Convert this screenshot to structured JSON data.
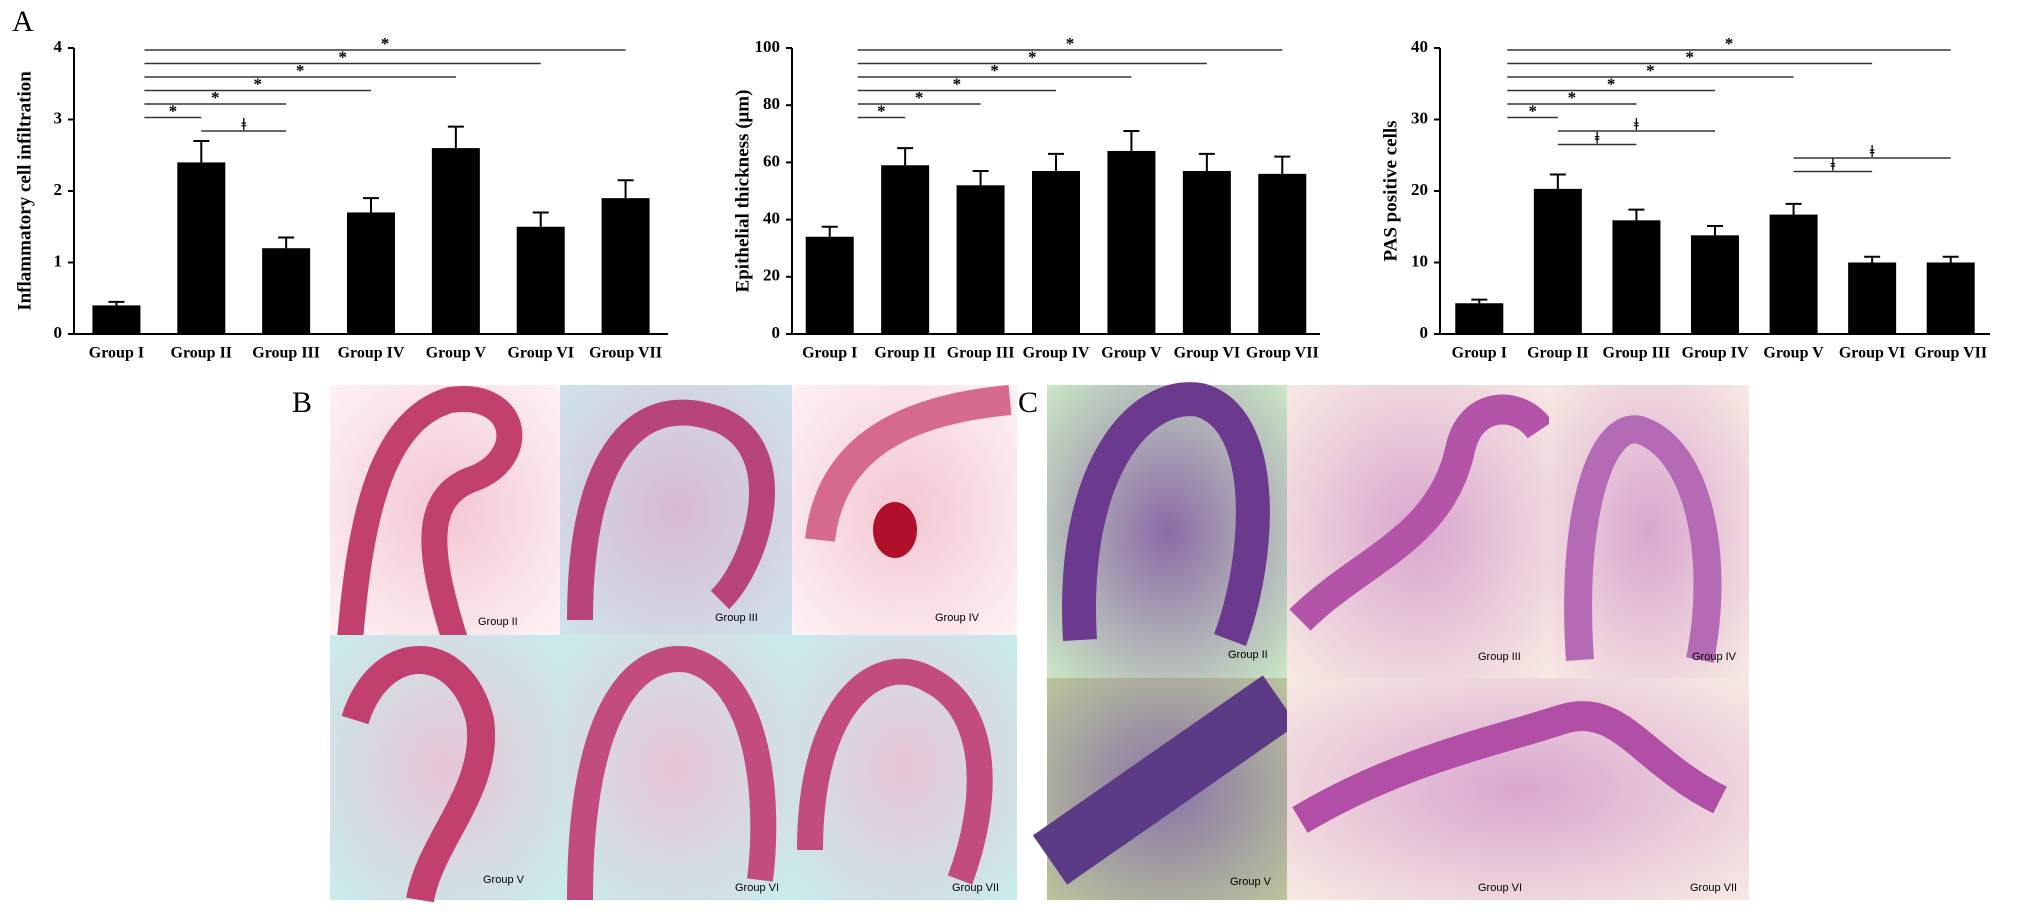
{
  "chart_data": [
    {
      "type": "bar",
      "ylabel": "Inflammatory cell infiltration",
      "color": "#000000",
      "categories": [
        "Group I",
        "Group II",
        "Group III",
        "Group IV",
        "Group V",
        "Group VI",
        "Group VII"
      ],
      "values": [
        0.4,
        2.4,
        1.2,
        1.7,
        2.6,
        1.5,
        1.9
      ],
      "errors": [
        0.05,
        0.3,
        0.15,
        0.2,
        0.3,
        0.2,
        0.25
      ],
      "ylim": [
        0,
        4
      ],
      "yticks": [
        0,
        1,
        2,
        3,
        4
      ],
      "annotations": [
        {
          "text": "*",
          "from": "Group I",
          "to": "Group VII"
        },
        {
          "text": "*",
          "from": "Group I",
          "to": "Group VI"
        },
        {
          "text": "*",
          "from": "Group I",
          "to": "Group V"
        },
        {
          "text": "*",
          "from": "Group I",
          "to": "Group IV"
        },
        {
          "text": "*",
          "from": "Group I",
          "to": "Group III"
        },
        {
          "text": "*",
          "from": "Group I",
          "to": "Group II"
        },
        {
          "text": "ǂ",
          "from": "Group II",
          "to": "Group III"
        }
      ]
    },
    {
      "type": "bar",
      "ylabel": "Epithelial thickness (μm)",
      "color": "#000000",
      "categories": [
        "Group I",
        "Group II",
        "Group III",
        "Group IV",
        "Group V",
        "Group VI",
        "Group VII"
      ],
      "values": [
        34,
        59,
        52,
        57,
        64,
        57,
        56
      ],
      "errors": [
        3.5,
        6,
        5,
        6,
        7,
        6,
        6
      ],
      "ylim": [
        0,
        100
      ],
      "yticks": [
        0,
        20,
        40,
        60,
        80,
        100
      ],
      "annotations": [
        {
          "text": "*",
          "from": "Group I",
          "to": "Group VII"
        },
        {
          "text": "*",
          "from": "Group I",
          "to": "Group VI"
        },
        {
          "text": "*",
          "from": "Group I",
          "to": "Group V"
        },
        {
          "text": "*",
          "from": "Group I",
          "to": "Group IV"
        },
        {
          "text": "*",
          "from": "Group I",
          "to": "Group III"
        },
        {
          "text": "*",
          "from": "Group I",
          "to": "Group II"
        }
      ]
    },
    {
      "type": "bar",
      "ylabel": "PAS positive cells",
      "color": "#000000",
      "categories": [
        "Group I",
        "Group II",
        "Group III",
        "Group IV",
        "Group V",
        "Group VI",
        "Group VII"
      ],
      "values": [
        4.3,
        20.3,
        15.9,
        13.8,
        16.7,
        10,
        10
      ],
      "errors": [
        0.5,
        2,
        1.5,
        1.3,
        1.5,
        0.8,
        0.8
      ],
      "ylim": [
        0,
        40
      ],
      "yticks": [
        0,
        10,
        20,
        30,
        40
      ],
      "annotations": [
        {
          "text": "*",
          "from": "Group I",
          "to": "Group VII"
        },
        {
          "text": "*",
          "from": "Group I",
          "to": "Group VI"
        },
        {
          "text": "*",
          "from": "Group I",
          "to": "Group V"
        },
        {
          "text": "*",
          "from": "Group I",
          "to": "Group IV"
        },
        {
          "text": "*",
          "from": "Group I",
          "to": "Group III"
        },
        {
          "text": "*",
          "from": "Group I",
          "to": "Group II"
        },
        {
          "text": "ǂ",
          "from": "Group II",
          "to": "Group IV"
        },
        {
          "text": "ǂ",
          "from": "Group II",
          "to": "Group III"
        },
        {
          "text": "ǂ",
          "from": "Group V",
          "to": "Group VII"
        },
        {
          "text": "ǂ",
          "from": "Group V",
          "to": "Group VI"
        }
      ]
    }
  ],
  "panels": [
    {
      "label": "A"
    },
    {
      "label": "B",
      "captions": [
        "Group II",
        "Group III",
        "Group IV",
        "Group V",
        "Group VI",
        "Group VII"
      ]
    },
    {
      "label": "C",
      "captions": [
        "Group II",
        "Group III",
        "Group IV",
        "Group V",
        "Group VI",
        "Group VII"
      ]
    }
  ]
}
